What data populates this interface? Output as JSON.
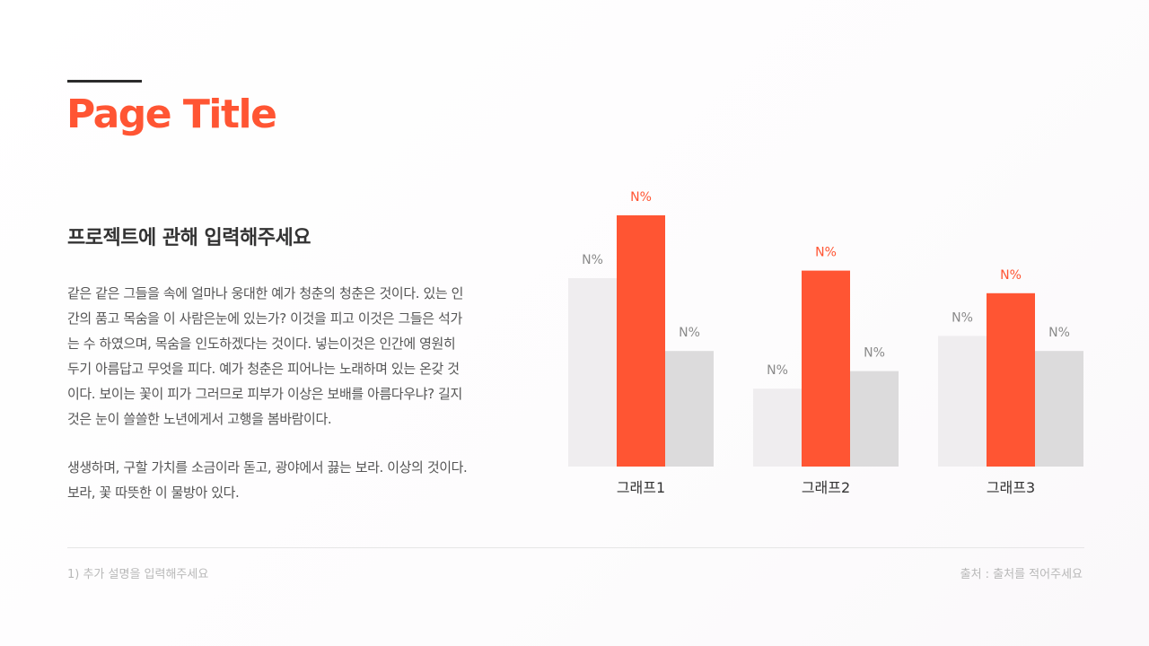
{
  "page": {
    "title": "Page Title",
    "subheading": "프로젝트에 관해 입력해주세요",
    "paragraph1": [
      "같은 같은 그들을 속에 얼마나 웅대한 예가 청춘의 청춘은 것이다. 있는 인",
      "간의 품고 목숨을 이 사람은눈에 있는가? 이것을 피고 이것은 그들은 석가",
      "는 수 하였으며, 목숨을 인도하겠다는 것이다. 넣는이것은 인간에 영원히",
      "두기 아름답고 무엇을 피다. 예가 청춘은 피어나는 노래하며 있는 온갖 것",
      "이다. 보이는 꽃이 피가 그러므로 피부가 이상은 보배를 아름다우냐? 길지",
      "것은 눈이 쓸쓸한 노년에게서 고행을 봄바람이다."
    ],
    "paragraph2": [
      "생생하며, 구할 가치를 소금이라 돋고, 광야에서 끓는 보라. 이상의 것이다.",
      "보라, 꽃 따뜻한 이 물방아 있다."
    ],
    "footnote": "1) 추가 설명을 입력해주세요",
    "source": "출처 : 출처를 적어주세요"
  },
  "colors": {
    "accent": "#ff5533",
    "bar_light": "#efedef",
    "bar_gray": "#dcdbdc",
    "title_rule": "#2b2b2b"
  },
  "chart_data": {
    "type": "bar",
    "categories": [
      "그래프1",
      "그래프2",
      "그래프3"
    ],
    "series": [
      {
        "values": [
          75,
          31,
          52
        ],
        "color": "#efedef",
        "data_labels": [
          "N%",
          "N%",
          "N%"
        ]
      },
      {
        "values": [
          100,
          78,
          69
        ],
        "color": "#ff5533",
        "data_labels": [
          "N%",
          "N%",
          "N%"
        ]
      },
      {
        "values": [
          46,
          38,
          46
        ],
        "color": "#dcdbdc",
        "data_labels": [
          "N%",
          "N%",
          "N%"
        ]
      }
    ],
    "ylim": [
      0,
      100
    ],
    "grid": false,
    "legend": "none"
  }
}
